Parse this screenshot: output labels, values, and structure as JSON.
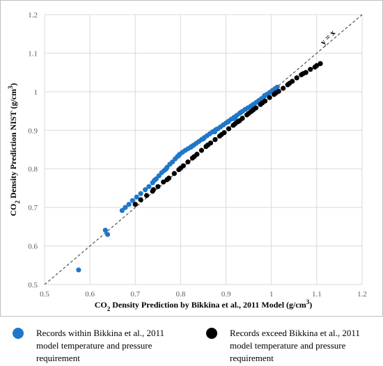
{
  "chart_data": {
    "type": "scatter",
    "xlabel_parts": [
      "CO",
      "2",
      " Density Prediction by Bikkina et al., 2011 Model (g/cm",
      "3",
      ")"
    ],
    "ylabel_parts": [
      "CO",
      "2",
      " Density Prediction NIST (g/cm",
      "3",
      ")"
    ],
    "xlim": [
      0.5,
      1.2
    ],
    "ylim": [
      0.5,
      1.2
    ],
    "x_ticks": [
      "0.5",
      "0.6",
      "0.7",
      "0.8",
      "0.9",
      "1",
      "1.1",
      "1.2"
    ],
    "y_ticks": [
      "0.5",
      "0.6",
      "0.7",
      "0.8",
      "0.9",
      "1",
      "1.1",
      "1.2"
    ],
    "grid": true,
    "reference_line": {
      "label": "y = x",
      "from": [
        0.5,
        0.5
      ],
      "to": [
        1.2,
        1.2
      ],
      "style": "dashed"
    },
    "series": [
      {
        "name": "Records within Bikkina et al., 2011 model temperature and pressure requirement",
        "color": "#1f77c9",
        "points": [
          [
            0.575,
            0.538
          ],
          [
            0.634,
            0.641
          ],
          [
            0.639,
            0.63
          ],
          [
            0.671,
            0.692
          ],
          [
            0.678,
            0.7
          ],
          [
            0.686,
            0.708
          ],
          [
            0.694,
            0.718
          ],
          [
            0.703,
            0.727
          ],
          [
            0.712,
            0.736
          ],
          [
            0.722,
            0.746
          ],
          [
            0.73,
            0.754
          ],
          [
            0.738,
            0.764
          ],
          [
            0.746,
            0.774
          ],
          [
            0.752,
            0.782
          ],
          [
            0.758,
            0.79
          ],
          [
            0.764,
            0.796
          ],
          [
            0.77,
            0.804
          ],
          [
            0.776,
            0.812
          ],
          [
            0.782,
            0.818
          ],
          [
            0.788,
            0.826
          ],
          [
            0.793,
            0.832
          ],
          [
            0.798,
            0.838
          ],
          [
            0.804,
            0.843
          ],
          [
            0.81,
            0.848
          ],
          [
            0.816,
            0.852
          ],
          [
            0.822,
            0.856
          ],
          [
            0.828,
            0.861
          ],
          [
            0.834,
            0.866
          ],
          [
            0.84,
            0.871
          ],
          [
            0.846,
            0.876
          ],
          [
            0.852,
            0.881
          ],
          [
            0.858,
            0.886
          ],
          [
            0.864,
            0.891
          ],
          [
            0.87,
            0.896
          ],
          [
            0.876,
            0.9
          ],
          [
            0.882,
            0.904
          ],
          [
            0.888,
            0.909
          ],
          [
            0.894,
            0.914
          ],
          [
            0.9,
            0.919
          ],
          [
            0.906,
            0.924
          ],
          [
            0.912,
            0.929
          ],
          [
            0.918,
            0.934
          ],
          [
            0.924,
            0.939
          ],
          [
            0.93,
            0.944
          ],
          [
            0.936,
            0.949
          ],
          [
            0.942,
            0.954
          ],
          [
            0.948,
            0.958
          ],
          [
            0.954,
            0.962
          ],
          [
            0.96,
            0.967
          ],
          [
            0.966,
            0.972
          ],
          [
            0.972,
            0.977
          ],
          [
            0.978,
            0.982
          ],
          [
            0.984,
            0.988
          ],
          [
            0.99,
            0.993
          ],
          [
            0.996,
            0.998
          ],
          [
            1.002,
            1.003
          ],
          [
            1.008,
            1.008
          ],
          [
            1.013,
            1.012
          ],
          [
            0.742,
            0.77
          ],
          [
            0.768,
            0.8
          ],
          [
            0.796,
            0.835
          ],
          [
            0.824,
            0.858
          ],
          [
            0.85,
            0.878
          ],
          [
            0.878,
            0.902
          ],
          [
            0.905,
            0.922
          ],
          [
            0.932,
            0.946
          ],
          [
            0.958,
            0.965
          ],
          [
            0.985,
            0.99
          ],
          [
            0.875,
            0.896
          ],
          [
            0.92,
            0.93
          ]
        ]
      },
      {
        "name": "Records exceed Bikkina et al., 2011 model temperature and pressure requirement",
        "color": "#000000",
        "points": [
          [
            0.7,
            0.708
          ],
          [
            0.712,
            0.72
          ],
          [
            0.725,
            0.731
          ],
          [
            0.738,
            0.742
          ],
          [
            0.75,
            0.754
          ],
          [
            0.762,
            0.766
          ],
          [
            0.774,
            0.776
          ],
          [
            0.786,
            0.788
          ],
          [
            0.796,
            0.798
          ],
          [
            0.806,
            0.808
          ],
          [
            0.816,
            0.818
          ],
          [
            0.826,
            0.828
          ],
          [
            0.836,
            0.838
          ],
          [
            0.846,
            0.848
          ],
          [
            0.856,
            0.858
          ],
          [
            0.866,
            0.867
          ],
          [
            0.876,
            0.876
          ],
          [
            0.886,
            0.885
          ],
          [
            0.896,
            0.894
          ],
          [
            0.906,
            0.904
          ],
          [
            0.916,
            0.913
          ],
          [
            0.926,
            0.922
          ],
          [
            0.936,
            0.931
          ],
          [
            0.946,
            0.94
          ],
          [
            0.956,
            0.949
          ],
          [
            0.966,
            0.958
          ],
          [
            0.976,
            0.967
          ],
          [
            0.986,
            0.976
          ],
          [
            0.996,
            0.985
          ],
          [
            1.006,
            0.993
          ],
          [
            1.016,
            1.001
          ],
          [
            1.026,
            1.009
          ],
          [
            1.036,
            1.018
          ],
          [
            1.046,
            1.027
          ],
          [
            1.056,
            1.036
          ],
          [
            1.066,
            1.044
          ],
          [
            1.076,
            1.05
          ],
          [
            1.086,
            1.058
          ],
          [
            1.096,
            1.064
          ],
          [
            1.108,
            1.073
          ],
          [
            0.74,
            0.746
          ],
          [
            0.77,
            0.772
          ],
          [
            0.8,
            0.802
          ],
          [
            0.83,
            0.832
          ],
          [
            0.86,
            0.862
          ],
          [
            0.89,
            0.889
          ],
          [
            0.92,
            0.917
          ],
          [
            0.95,
            0.944
          ],
          [
            0.98,
            0.971
          ],
          [
            1.01,
            0.997
          ],
          [
            1.04,
            1.022
          ],
          [
            1.07,
            1.047
          ],
          [
            1.1,
            1.068
          ],
          [
            0.93,
            0.925
          ],
          [
            0.96,
            0.953
          ]
        ]
      }
    ]
  },
  "legend": [
    {
      "color": "#1f77c9",
      "lines": [
        "Records within Bikkina et al., 2011",
        "model temperature and pressure",
        "requirement"
      ]
    },
    {
      "color": "#000000",
      "lines": [
        "Records exceed Bikkina et al., 2011",
        "model temperature and pressure",
        "requirement"
      ]
    }
  ]
}
